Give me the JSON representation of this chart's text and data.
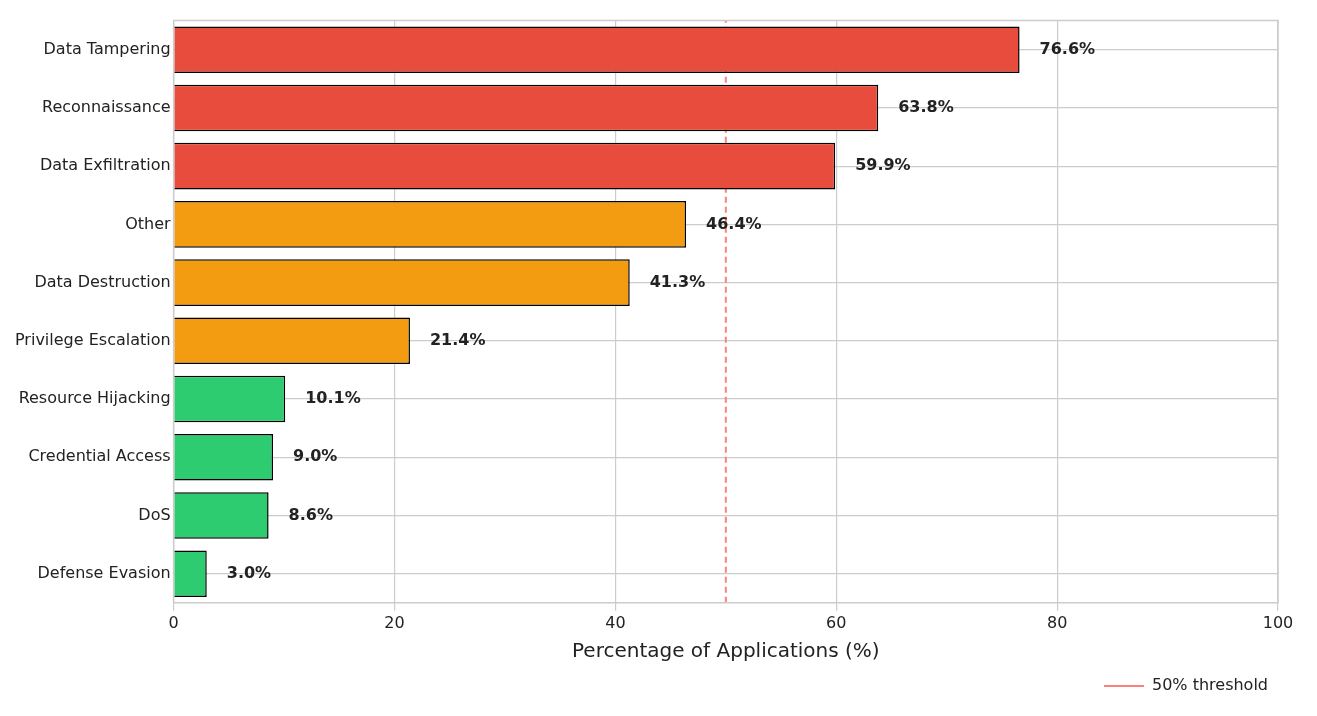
{
  "chart_data": {
    "type": "bar",
    "orientation": "horizontal",
    "xlabel": "Percentage of Applications (%)",
    "categories": [
      "Data Tampering",
      "Reconnaissance",
      "Data Exfiltration",
      "Other",
      "Data Destruction",
      "Privilege Escalation",
      "Resource Hijacking",
      "Credential Access",
      "DoS",
      "Defense Evasion"
    ],
    "values": [
      76.6,
      63.8,
      59.9,
      46.4,
      41.3,
      21.4,
      10.1,
      9.0,
      8.6,
      3.0
    ],
    "colors": [
      "#e74c3c",
      "#e74c3c",
      "#e74c3c",
      "#f39c12",
      "#f39c12",
      "#f39c12",
      "#2ecc71",
      "#2ecc71",
      "#2ecc71",
      "#2ecc71"
    ],
    "value_labels": [
      "76.6%",
      "63.8%",
      "59.9%",
      "46.4%",
      "41.3%",
      "21.4%",
      "10.1%",
      "9.0%",
      "8.6%",
      "3.0%"
    ],
    "xlim": [
      0,
      100
    ],
    "xticks": [
      0,
      20,
      40,
      60,
      80,
      100
    ],
    "grid": true,
    "legend": "bottom right",
    "ref_lines": [
      {
        "axis": "x",
        "value": 50,
        "label": "50% threshold",
        "color": "#ff7f7f",
        "line_style": "dashed"
      }
    ]
  }
}
